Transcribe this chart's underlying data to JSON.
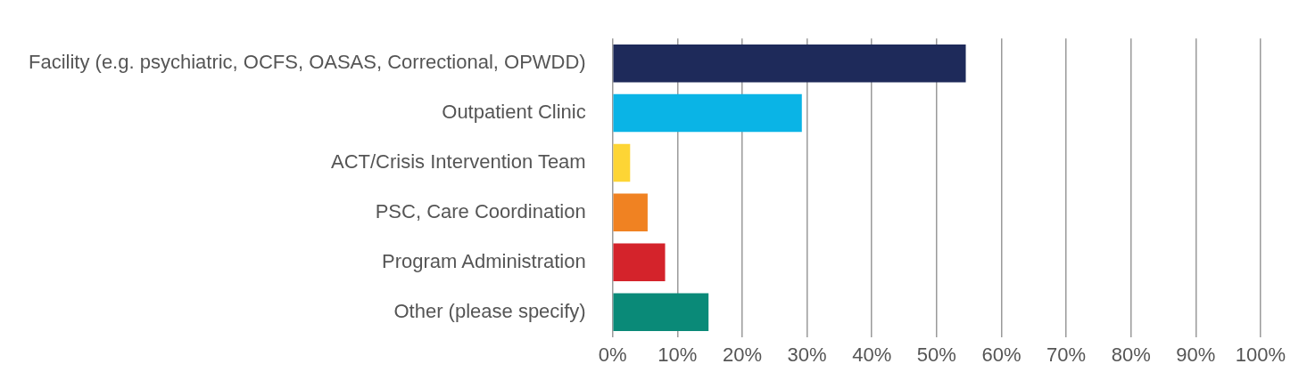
{
  "chart_data": {
    "type": "bar",
    "orientation": "horizontal",
    "categories": [
      "Facility (e.g. psychiatric, OCFS, OASAS, Correctional, OPWDD)",
      "Outpatient Clinic",
      "ACT/Crisis Intervention Team",
      "PSC, Care Coordination",
      "Program Administration",
      "Other (please specify)"
    ],
    "values": [
      54.5,
      29.2,
      2.7,
      5.4,
      8.1,
      14.8
    ],
    "colors": [
      "#1e2a5a",
      "#0ab4e6",
      "#fdd535",
      "#f08222",
      "#d4232b",
      "#0a8a78"
    ],
    "xlim": [
      0,
      100
    ],
    "xticks": [
      {
        "value": 0,
        "label": "0%"
      },
      {
        "value": 10,
        "label": "10%"
      },
      {
        "value": 20,
        "label": "20%"
      },
      {
        "value": 30,
        "label": "30%"
      },
      {
        "value": 40,
        "label": "40%"
      },
      {
        "value": 50,
        "label": "50%"
      },
      {
        "value": 60,
        "label": "60%"
      },
      {
        "value": 70,
        "label": "70%"
      },
      {
        "value": 80,
        "label": "80%"
      },
      {
        "value": 90,
        "label": "90%"
      },
      {
        "value": 100,
        "label": "100%"
      }
    ],
    "grid": "x",
    "legend": false
  }
}
